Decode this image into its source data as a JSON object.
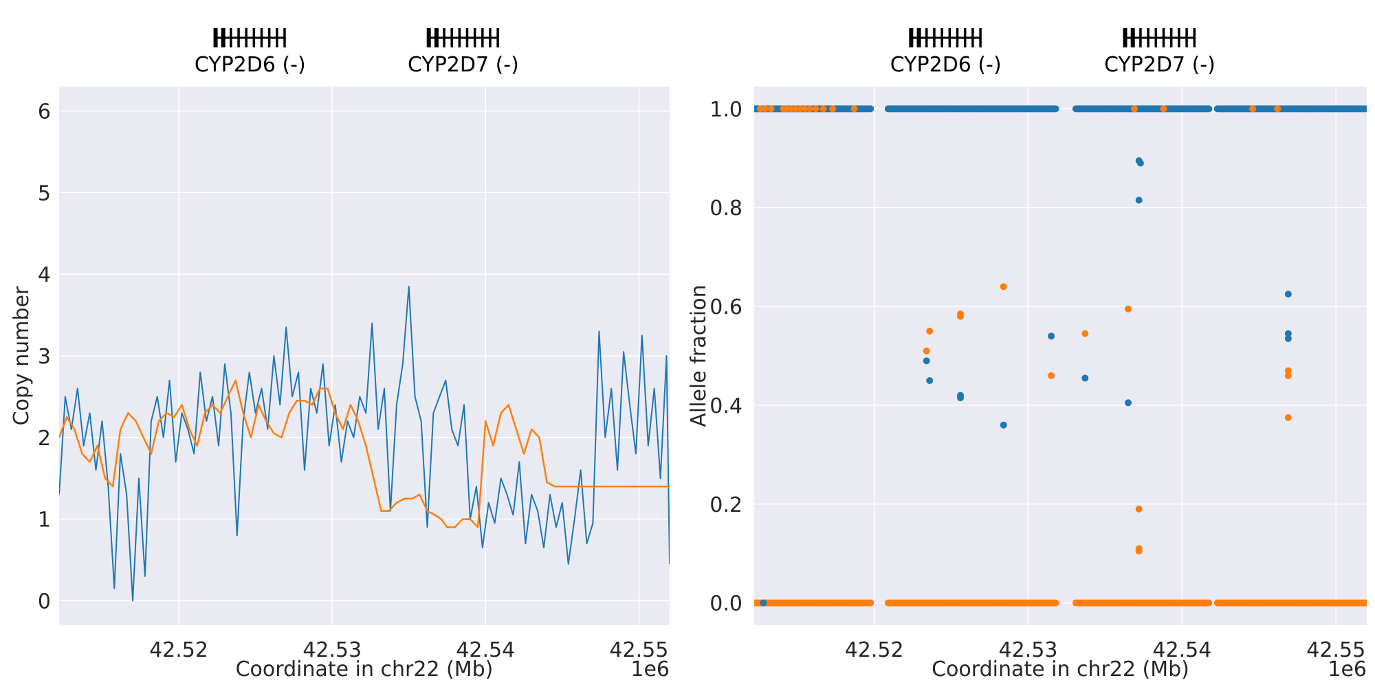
{
  "colors": {
    "background": "#eaeaf2",
    "grid": "#ffffff",
    "series_raw": "#1f77b4",
    "series_smooth": "#ff7f0e",
    "gene": "#000000"
  },
  "chart_data": [
    {
      "type": "line",
      "xlabel": "Coordinate in chr22 (Mb)",
      "ylabel": "Copy number",
      "x_offset_label": "1e6",
      "xlim": [
        42.5122,
        42.552
      ],
      "ylim": [
        -0.3,
        6.3
      ],
      "x_ticks": [
        42.52,
        42.53,
        42.54,
        42.55
      ],
      "x_tick_labels": [
        "42.52",
        "42.53",
        "42.54",
        "42.55"
      ],
      "y_ticks": [
        0,
        1,
        2,
        3,
        4,
        5,
        6
      ],
      "y_tick_labels": [
        "0",
        "1",
        "2",
        "3",
        "4",
        "5",
        "6"
      ],
      "grid": true,
      "genes": [
        {
          "label": "CYP2D6 (-)",
          "start": 42.5224,
          "end": 42.5269
        },
        {
          "label": "CYP2D7 (-)",
          "start": 42.5363,
          "end": 42.5408
        }
      ],
      "series": [
        {
          "role": "raw",
          "x": [
            42.5122,
            42.5126,
            42.513,
            42.5134,
            42.5138,
            42.5142,
            42.5146,
            42.515,
            42.5154,
            42.5158,
            42.5162,
            42.5166,
            42.517,
            42.5174,
            42.5178,
            42.5182,
            42.5186,
            42.519,
            42.5194,
            42.5198,
            42.5202,
            42.5206,
            42.521,
            42.5214,
            42.5218,
            42.5222,
            42.5226,
            42.523,
            42.5234,
            42.5238,
            42.5242,
            42.5246,
            42.525,
            42.5254,
            42.5258,
            42.5262,
            42.5266,
            42.527,
            42.5274,
            42.5278,
            42.5282,
            42.5286,
            42.529,
            42.5294,
            42.5298,
            42.5302,
            42.5306,
            42.531,
            42.5314,
            42.5318,
            42.5322,
            42.5326,
            42.533,
            42.5334,
            42.5338,
            42.5342,
            42.5346,
            42.535,
            42.5354,
            42.5358,
            42.5362,
            42.5366,
            42.537,
            42.5374,
            42.5378,
            42.5382,
            42.5386,
            42.539,
            42.5394,
            42.5398,
            42.5402,
            42.5406,
            42.541,
            42.5414,
            42.5418,
            42.5422,
            42.5426,
            42.543,
            42.5434,
            42.5438,
            42.5442,
            42.5446,
            42.545,
            42.5454,
            42.5458,
            42.5462,
            42.5466,
            42.547,
            42.5474,
            42.5478,
            42.5482,
            42.5486,
            42.549,
            42.5494,
            42.5498,
            42.5502,
            42.5506,
            42.551,
            42.5514,
            42.5518,
            42.552
          ],
          "y": [
            1.3,
            2.5,
            2.1,
            2.6,
            1.9,
            2.3,
            1.6,
            2.2,
            1.4,
            0.15,
            1.8,
            1.3,
            0.0,
            1.5,
            0.3,
            2.2,
            2.5,
            2.0,
            2.7,
            1.7,
            2.3,
            2.1,
            1.8,
            2.8,
            2.2,
            2.5,
            1.9,
            2.9,
            2.3,
            0.8,
            2.2,
            2.8,
            2.3,
            2.6,
            2.1,
            3.0,
            2.4,
            3.35,
            2.5,
            2.8,
            1.6,
            2.6,
            2.3,
            2.9,
            1.9,
            2.4,
            1.7,
            2.2,
            2.0,
            2.5,
            2.3,
            3.4,
            2.1,
            2.6,
            1.1,
            2.4,
            2.9,
            3.85,
            2.5,
            2.2,
            0.9,
            2.3,
            2.5,
            2.7,
            2.1,
            1.9,
            2.4,
            1.0,
            1.4,
            0.65,
            1.2,
            0.95,
            1.5,
            1.3,
            1.05,
            1.7,
            0.7,
            1.3,
            1.1,
            0.65,
            1.3,
            0.9,
            1.2,
            0.45,
            1.0,
            1.6,
            0.7,
            0.95,
            3.3,
            2.0,
            2.6,
            1.6,
            3.05,
            2.4,
            1.8,
            3.25,
            1.9,
            2.6,
            1.5,
            3.0,
            0.45
          ]
        },
        {
          "role": "smoothed",
          "x": [
            42.5122,
            42.5127,
            42.5132,
            42.5137,
            42.5142,
            42.5147,
            42.5152,
            42.5157,
            42.5162,
            42.5167,
            42.5172,
            42.5177,
            42.5182,
            42.5187,
            42.5192,
            42.5197,
            42.5202,
            42.5207,
            42.5212,
            42.5217,
            42.5222,
            42.5227,
            42.5232,
            42.5237,
            42.5242,
            42.5247,
            42.5252,
            42.5257,
            42.5262,
            42.5267,
            42.5272,
            42.5277,
            42.5282,
            42.5287,
            42.5292,
            42.5297,
            42.5302,
            42.5307,
            42.5312,
            42.5317,
            42.5322,
            42.5327,
            42.5332,
            42.5337,
            42.5342,
            42.5347,
            42.5352,
            42.5357,
            42.5362,
            42.5367,
            42.5371,
            42.5375,
            42.538,
            42.5385,
            42.539,
            42.5395,
            42.54,
            42.5405,
            42.541,
            42.5415,
            42.542,
            42.5425,
            42.543,
            42.5435,
            42.544,
            42.5445,
            42.545,
            42.5455,
            42.546,
            42.5465,
            42.5467,
            42.547,
            42.5475,
            42.548,
            42.5485,
            42.549,
            42.5495,
            42.55,
            42.5505,
            42.551,
            42.5515,
            42.552
          ],
          "y": [
            2.0,
            2.25,
            2.1,
            1.8,
            1.7,
            1.9,
            1.5,
            1.4,
            2.1,
            2.3,
            2.2,
            2.0,
            1.8,
            2.2,
            2.3,
            2.25,
            2.4,
            2.1,
            1.9,
            2.3,
            2.4,
            2.3,
            2.5,
            2.7,
            2.3,
            2.0,
            2.4,
            2.2,
            2.05,
            2.0,
            2.3,
            2.45,
            2.45,
            2.4,
            2.6,
            2.6,
            2.3,
            2.1,
            2.4,
            2.2,
            1.9,
            1.5,
            1.1,
            1.1,
            1.2,
            1.25,
            1.25,
            1.3,
            1.1,
            1.05,
            1.0,
            0.9,
            0.9,
            1.0,
            1.0,
            0.9,
            2.2,
            1.9,
            2.3,
            2.4,
            2.1,
            1.8,
            2.1,
            2.0,
            1.45,
            1.4,
            1.4,
            1.4,
            1.4,
            1.4,
            1.4,
            1.4,
            1.4,
            1.4,
            1.4,
            1.4,
            1.4,
            1.4,
            1.4,
            1.4,
            1.4,
            1.4
          ]
        }
      ]
    },
    {
      "type": "scatter",
      "xlabel": "Coordinate in chr22 (Mb)",
      "ylabel": "Allele fraction",
      "x_offset_label": "1e6",
      "xlim": [
        42.5122,
        42.552
      ],
      "ylim": [
        -0.045,
        1.045
      ],
      "x_ticks": [
        42.52,
        42.53,
        42.54,
        42.55
      ],
      "x_tick_labels": [
        "42.52",
        "42.53",
        "42.54",
        "42.55"
      ],
      "y_ticks": [
        0.0,
        0.2,
        0.4,
        0.6,
        0.8,
        1.0
      ],
      "y_tick_labels": [
        "0.0",
        "0.2",
        "0.4",
        "0.6",
        "0.8",
        "1.0"
      ],
      "grid": true,
      "genes": [
        {
          "label": "CYP2D6 (-)",
          "start": 42.5224,
          "end": 42.5269
        },
        {
          "label": "CYP2D7 (-)",
          "start": 42.5363,
          "end": 42.5408
        }
      ],
      "bands": [
        {
          "series": "blue",
          "y": 1.0,
          "segments": [
            [
              42.5122,
              42.5198
            ],
            [
              42.5209,
              42.5318
            ],
            [
              42.5331,
              42.5418
            ],
            [
              42.5423,
              42.552
            ]
          ]
        },
        {
          "series": "orange",
          "y": 0.0,
          "segments": [
            [
              42.5122,
              42.5198
            ],
            [
              42.5209,
              42.5318
            ],
            [
              42.5331,
              42.5418
            ],
            [
              42.5423,
              42.552
            ]
          ]
        }
      ],
      "series": [
        {
          "role": "blue",
          "points": [
            [
              42.5234,
              0.49
            ],
            [
              42.5236,
              0.45
            ],
            [
              42.5256,
              0.42
            ],
            [
              42.5256,
              0.415
            ],
            [
              42.5284,
              0.36
            ],
            [
              42.5315,
              0.54
            ],
            [
              42.5337,
              0.455
            ],
            [
              42.5365,
              0.405
            ],
            [
              42.5372,
              0.895
            ],
            [
              42.5373,
              0.89
            ],
            [
              42.5372,
              0.815
            ],
            [
              42.5469,
              0.625
            ],
            [
              42.5469,
              0.545
            ],
            [
              42.5469,
              0.535
            ],
            [
              42.5128,
              0.0
            ]
          ]
        },
        {
          "role": "orange",
          "points": [
            [
              42.5234,
              0.51
            ],
            [
              42.5236,
              0.55
            ],
            [
              42.5256,
              0.585
            ],
            [
              42.5256,
              0.58
            ],
            [
              42.5284,
              0.64
            ],
            [
              42.5315,
              0.46
            ],
            [
              42.5337,
              0.545
            ],
            [
              42.5365,
              0.595
            ],
            [
              42.5372,
              0.19
            ],
            [
              42.5372,
              0.11
            ],
            [
              42.5372,
              0.105
            ],
            [
              42.5469,
              0.47
            ],
            [
              42.5469,
              0.46
            ],
            [
              42.5469,
              0.375
            ],
            [
              42.5126,
              1.0
            ],
            [
              42.5129,
              1.0
            ],
            [
              42.5133,
              1.0
            ],
            [
              42.5141,
              1.0
            ],
            [
              42.5143,
              1.0
            ],
            [
              42.5146,
              1.0
            ],
            [
              42.5149,
              1.0
            ],
            [
              42.5152,
              1.0
            ],
            [
              42.5155,
              1.0
            ],
            [
              42.5158,
              1.0
            ],
            [
              42.5162,
              1.0
            ],
            [
              42.5167,
              1.0
            ],
            [
              42.5173,
              1.0
            ],
            [
              42.5187,
              1.0
            ],
            [
              42.5369,
              1.0
            ],
            [
              42.5388,
              1.0
            ],
            [
              42.5446,
              1.0
            ],
            [
              42.5462,
              1.0
            ]
          ]
        }
      ]
    }
  ]
}
